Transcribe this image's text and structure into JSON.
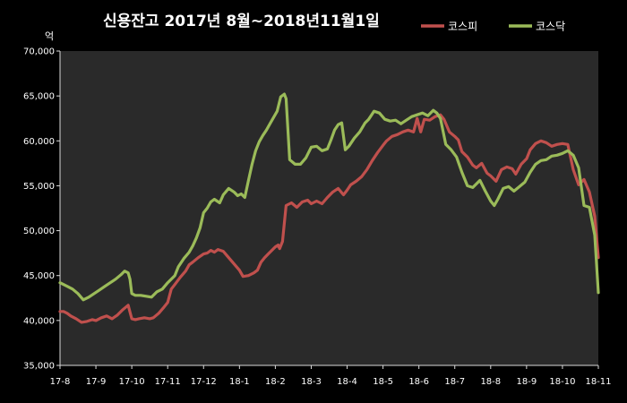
{
  "chart_data": {
    "type": "line",
    "title": "신용잔고 2017년 8월~2018년11월1일",
    "ylabel": "억",
    "xlabel": "",
    "ylim": [
      35000,
      70000
    ],
    "yticks": [
      35000,
      40000,
      45000,
      50000,
      55000,
      60000,
      65000,
      70000
    ],
    "ytick_labels": [
      "35,000",
      "40,000",
      "45,000",
      "50,000",
      "55,000",
      "60,000",
      "65,000",
      "70,000"
    ],
    "categories": [
      "17-8",
      "17-9",
      "17-10",
      "17-11",
      "17-12",
      "18-1",
      "18-2",
      "18-3",
      "18-4",
      "18-5",
      "18-6",
      "18-7",
      "18-8",
      "18-9",
      "18-10",
      "18-11"
    ],
    "legend_position": "top-right",
    "grid": false,
    "background": "#000000",
    "plot_background": "#2a2a2a",
    "series": [
      {
        "name": "코스피",
        "color": "#c0504d",
        "x": [
          0,
          0.1,
          0.2,
          0.3,
          0.45,
          0.6,
          0.75,
          0.9,
          1.0,
          1.15,
          1.3,
          1.45,
          1.6,
          1.75,
          1.9,
          2.0,
          2.1,
          2.2,
          2.35,
          2.5,
          2.6,
          2.75,
          2.9,
          3.0,
          3.1,
          3.2,
          3.35,
          3.5,
          3.6,
          3.7,
          3.85,
          4.0,
          4.1,
          4.2,
          4.3,
          4.4,
          4.55,
          4.7,
          4.85,
          5.0,
          5.1,
          5.25,
          5.4,
          5.5,
          5.6,
          5.7,
          5.8,
          5.9,
          6.0,
          6.08,
          6.12,
          6.2,
          6.3,
          6.45,
          6.6,
          6.75,
          6.9,
          7.0,
          7.15,
          7.3,
          7.45,
          7.6,
          7.75,
          7.9,
          8.0,
          8.1,
          8.25,
          8.4,
          8.55,
          8.7,
          8.85,
          9.0,
          9.1,
          9.25,
          9.4,
          9.55,
          9.7,
          9.85,
          9.95,
          10.05,
          10.15,
          10.3,
          10.45,
          10.6,
          10.7,
          10.85,
          11.0,
          11.1,
          11.2,
          11.35,
          11.5,
          11.6,
          11.75,
          11.9,
          12.0,
          12.15,
          12.3,
          12.45,
          12.6,
          12.7,
          12.85,
          13.0,
          13.1,
          13.25,
          13.4,
          13.55,
          13.7,
          13.85,
          14.0,
          14.15,
          14.3,
          14.45,
          14.6,
          14.75,
          14.9,
          15.0
        ],
        "values": [
          41000,
          41000,
          40800,
          40500,
          40200,
          39800,
          39900,
          40100,
          40000,
          40300,
          40500,
          40200,
          40600,
          41200,
          41700,
          40200,
          40100,
          40200,
          40300,
          40200,
          40300,
          40800,
          41500,
          42000,
          43500,
          44000,
          44800,
          45500,
          46200,
          46500,
          47000,
          47400,
          47500,
          47800,
          47600,
          47900,
          47700,
          47000,
          46300,
          45600,
          44900,
          45000,
          45300,
          45600,
          46500,
          47000,
          47400,
          47800,
          48200,
          48400,
          48000,
          48800,
          52800,
          53100,
          52600,
          53200,
          53400,
          53000,
          53300,
          53000,
          53700,
          54300,
          54700,
          54000,
          54500,
          55100,
          55500,
          56000,
          56800,
          57800,
          58700,
          59500,
          60000,
          60500,
          60700,
          61000,
          61200,
          61000,
          62500,
          61000,
          62400,
          62300,
          62700,
          62900,
          62400,
          61000,
          60500,
          60100,
          58800,
          58200,
          57300,
          57000,
          57500,
          56400,
          56100,
          55500,
          56800,
          57100,
          56900,
          56300,
          57400,
          58000,
          59000,
          59700,
          60000,
          59800,
          59400,
          59600,
          59700,
          59600,
          56800,
          55100,
          55700,
          54300,
          51600,
          47000
        ]
      },
      {
        "name": "코스닥",
        "color": "#9bbb59",
        "x": [
          0,
          0.1,
          0.2,
          0.35,
          0.5,
          0.65,
          0.8,
          0.95,
          1.1,
          1.25,
          1.4,
          1.55,
          1.7,
          1.8,
          1.9,
          1.95,
          2.0,
          2.1,
          2.25,
          2.4,
          2.55,
          2.7,
          2.85,
          3.0,
          3.1,
          3.2,
          3.3,
          3.45,
          3.6,
          3.7,
          3.8,
          3.9,
          4.0,
          4.1,
          4.2,
          4.3,
          4.45,
          4.55,
          4.7,
          4.85,
          4.95,
          5.05,
          5.15,
          5.25,
          5.35,
          5.45,
          5.55,
          5.65,
          5.75,
          5.85,
          5.95,
          6.05,
          6.15,
          6.25,
          6.3,
          6.4,
          6.55,
          6.7,
          6.85,
          7.0,
          7.15,
          7.3,
          7.45,
          7.55,
          7.65,
          7.75,
          7.85,
          7.95,
          8.05,
          8.2,
          8.35,
          8.5,
          8.6,
          8.75,
          8.9,
          9.05,
          9.2,
          9.35,
          9.5,
          9.65,
          9.8,
          9.95,
          10.1,
          10.25,
          10.4,
          10.5,
          10.6,
          10.75,
          10.9,
          11.05,
          11.2,
          11.35,
          11.5,
          11.6,
          11.7,
          11.85,
          12.0,
          12.1,
          12.2,
          12.35,
          12.5,
          12.65,
          12.8,
          12.95,
          13.1,
          13.25,
          13.4,
          13.55,
          13.7,
          13.85,
          14.0,
          14.15,
          14.3,
          14.45,
          14.6,
          14.75,
          14.9,
          15.0
        ],
        "values": [
          44200,
          44000,
          43800,
          43500,
          43000,
          42300,
          42600,
          43000,
          43400,
          43800,
          44200,
          44600,
          45100,
          45500,
          45300,
          44600,
          43000,
          42800,
          42800,
          42700,
          42600,
          43200,
          43500,
          44200,
          44600,
          45000,
          46000,
          46900,
          47600,
          48300,
          49200,
          50300,
          52000,
          52500,
          53200,
          53500,
          53100,
          54000,
          54700,
          54300,
          53900,
          54100,
          53700,
          55600,
          57400,
          58900,
          59900,
          60600,
          61200,
          61900,
          62600,
          63300,
          64900,
          65200,
          64700,
          57900,
          57400,
          57400,
          58100,
          59300,
          59400,
          58900,
          59100,
          60100,
          61200,
          61800,
          62000,
          59000,
          59400,
          60300,
          61000,
          62000,
          62400,
          63300,
          63100,
          62400,
          62200,
          62300,
          61900,
          62300,
          62700,
          62900,
          63100,
          62800,
          63400,
          63100,
          62500,
          59600,
          59000,
          58200,
          56500,
          55000,
          54800,
          55200,
          55600,
          54400,
          53300,
          52800,
          53500,
          54700,
          54900,
          54400,
          54900,
          55400,
          56500,
          57400,
          57800,
          57900,
          58300,
          58400,
          58600,
          58900,
          58400,
          57000,
          52800,
          52600,
          49500,
          43100
        ]
      }
    ]
  }
}
